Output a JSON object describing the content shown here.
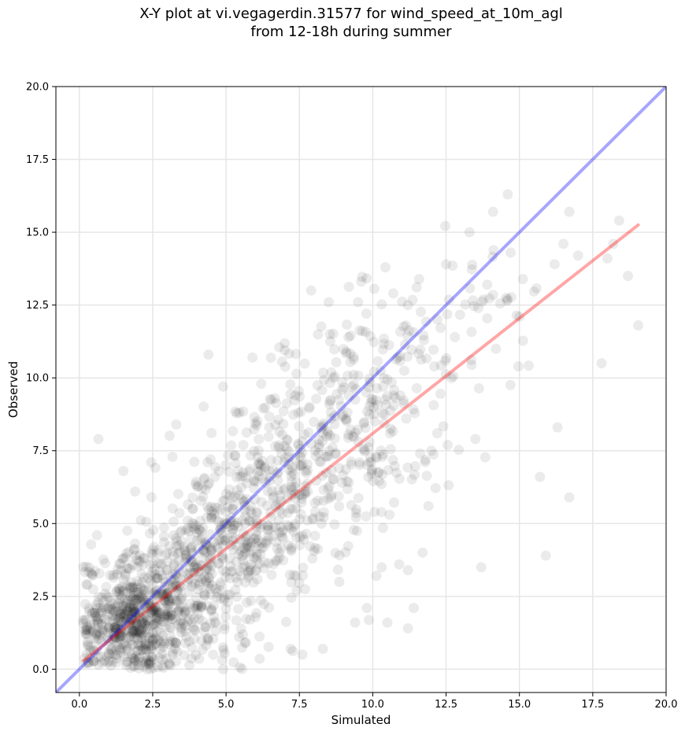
{
  "title_line1": "X-Y plot at vi.vegagerdin.31577 for wind_speed_at_10m_agl",
  "title_line2": "from 12-18h during summer",
  "chart_data": {
    "type": "scatter",
    "title": "X-Y plot at vi.vegagerdin.31577 for wind_speed_at_10m_agl from 12-18h during summer",
    "xlabel": "Simulated",
    "ylabel": "Observed",
    "xlim": [
      -0.8,
      20.0
    ],
    "ylim": [
      -0.8,
      20.0
    ],
    "xticks": [
      0.0,
      2.5,
      5.0,
      7.5,
      10.0,
      12.5,
      15.0,
      17.5,
      20.0
    ],
    "yticks": [
      0.0,
      2.5,
      5.0,
      7.5,
      10.0,
      12.5,
      15.0,
      17.5,
      20.0
    ],
    "xtick_labels": [
      "0.0",
      "2.5",
      "5.0",
      "7.5",
      "10.0",
      "12.5",
      "15.0",
      "17.5",
      "20.0"
    ],
    "ytick_labels": [
      "0.0",
      "2.5",
      "5.0",
      "7.5",
      "10.0",
      "12.5",
      "15.0",
      "17.5",
      "20.0"
    ],
    "grid": true,
    "point_color": "#000000",
    "point_alpha": 0.08,
    "reference_lines": [
      {
        "kind": "one-to-one",
        "color": "#0000ff",
        "alpha": 0.35,
        "x": [
          -0.8,
          20.0
        ],
        "y": [
          -0.8,
          20.0
        ]
      },
      {
        "kind": "regression",
        "color": "#ff0000",
        "alpha": 0.35,
        "x": [
          0.15,
          19.05
        ],
        "y": [
          0.3,
          15.25
        ]
      }
    ],
    "outliers": [
      {
        "x": 0.65,
        "y": 7.9
      },
      {
        "x": 4.4,
        "y": 10.8
      },
      {
        "x": 5.9,
        "y": 10.7
      },
      {
        "x": 7.9,
        "y": 13.0
      },
      {
        "x": 14.6,
        "y": 16.3
      },
      {
        "x": 14.1,
        "y": 15.7
      },
      {
        "x": 16.7,
        "y": 15.7
      },
      {
        "x": 18.4,
        "y": 15.4
      },
      {
        "x": 18.2,
        "y": 14.6
      },
      {
        "x": 19.05,
        "y": 11.8
      },
      {
        "x": 18.7,
        "y": 13.5
      },
      {
        "x": 17.8,
        "y": 10.5
      },
      {
        "x": 18.0,
        "y": 14.1
      },
      {
        "x": 17.0,
        "y": 14.2
      },
      {
        "x": 16.3,
        "y": 8.3
      },
      {
        "x": 16.7,
        "y": 5.9
      },
      {
        "x": 15.7,
        "y": 6.6
      },
      {
        "x": 15.9,
        "y": 3.9
      },
      {
        "x": 13.7,
        "y": 3.5
      },
      {
        "x": 13.5,
        "y": 7.9
      },
      {
        "x": 15.0,
        "y": 12.1
      },
      {
        "x": 16.5,
        "y": 14.6
      },
      {
        "x": 16.2,
        "y": 13.9
      },
      {
        "x": 13.3,
        "y": 15.0
      },
      {
        "x": 12.5,
        "y": 13.9
      },
      {
        "x": 11.2,
        "y": 1.4
      },
      {
        "x": 11.4,
        "y": 2.1
      },
      {
        "x": 9.8,
        "y": 2.1
      },
      {
        "x": 10.5,
        "y": 1.6
      },
      {
        "x": 11.9,
        "y": 5.6
      },
      {
        "x": 12.2,
        "y": 8.1
      },
      {
        "x": 12.0,
        "y": 7.5
      },
      {
        "x": 3.3,
        "y": 8.4
      },
      {
        "x": 1.5,
        "y": 6.8
      },
      {
        "x": 6.2,
        "y": 9.8
      },
      {
        "x": 4.9,
        "y": 9.7
      },
      {
        "x": 2.45,
        "y": 7.1
      },
      {
        "x": 1.9,
        "y": 6.1
      },
      {
        "x": 0.6,
        "y": 4.6
      },
      {
        "x": 11.2,
        "y": 12.5
      },
      {
        "x": 10.7,
        "y": 12.9
      },
      {
        "x": 9.5,
        "y": 12.6
      },
      {
        "x": 8.5,
        "y": 12.6
      },
      {
        "x": 10.9,
        "y": 3.6
      },
      {
        "x": 11.2,
        "y": 3.4
      },
      {
        "x": 11.7,
        "y": 4.0
      },
      {
        "x": 9.4,
        "y": 1.6
      },
      {
        "x": 7.2,
        "y": 0.7
      },
      {
        "x": 8.3,
        "y": 0.7
      },
      {
        "x": 7.6,
        "y": 0.5
      },
      {
        "x": 4.9,
        "y": 0.0
      },
      {
        "x": 0.3,
        "y": 0.2
      },
      {
        "x": 13.9,
        "y": 13.2
      },
      {
        "x": 14.6,
        "y": 12.7
      },
      {
        "x": 14.2,
        "y": 11.0
      },
      {
        "x": 14.7,
        "y": 14.3
      },
      {
        "x": 13.6,
        "y": 12.4
      },
      {
        "x": 12.8,
        "y": 11.4
      }
    ],
    "clusters": [
      {
        "x": 1.6,
        "y": 1.5,
        "sx": 0.9,
        "sy": 0.9,
        "n": 420
      },
      {
        "x": 3.2,
        "y": 2.6,
        "sx": 1.1,
        "sy": 1.3,
        "n": 380
      },
      {
        "x": 5.2,
        "y": 4.3,
        "sx": 1.2,
        "sy": 1.6,
        "n": 320
      },
      {
        "x": 7.5,
        "y": 6.6,
        "sx": 1.2,
        "sy": 1.8,
        "n": 240
      },
      {
        "x": 9.4,
        "y": 8.6,
        "sx": 1.1,
        "sy": 1.9,
        "n": 170
      },
      {
        "x": 11.3,
        "y": 10.4,
        "sx": 1.2,
        "sy": 1.9,
        "n": 70
      },
      {
        "x": 13.6,
        "y": 12.6,
        "sx": 1.0,
        "sy": 1.5,
        "n": 30
      }
    ]
  }
}
